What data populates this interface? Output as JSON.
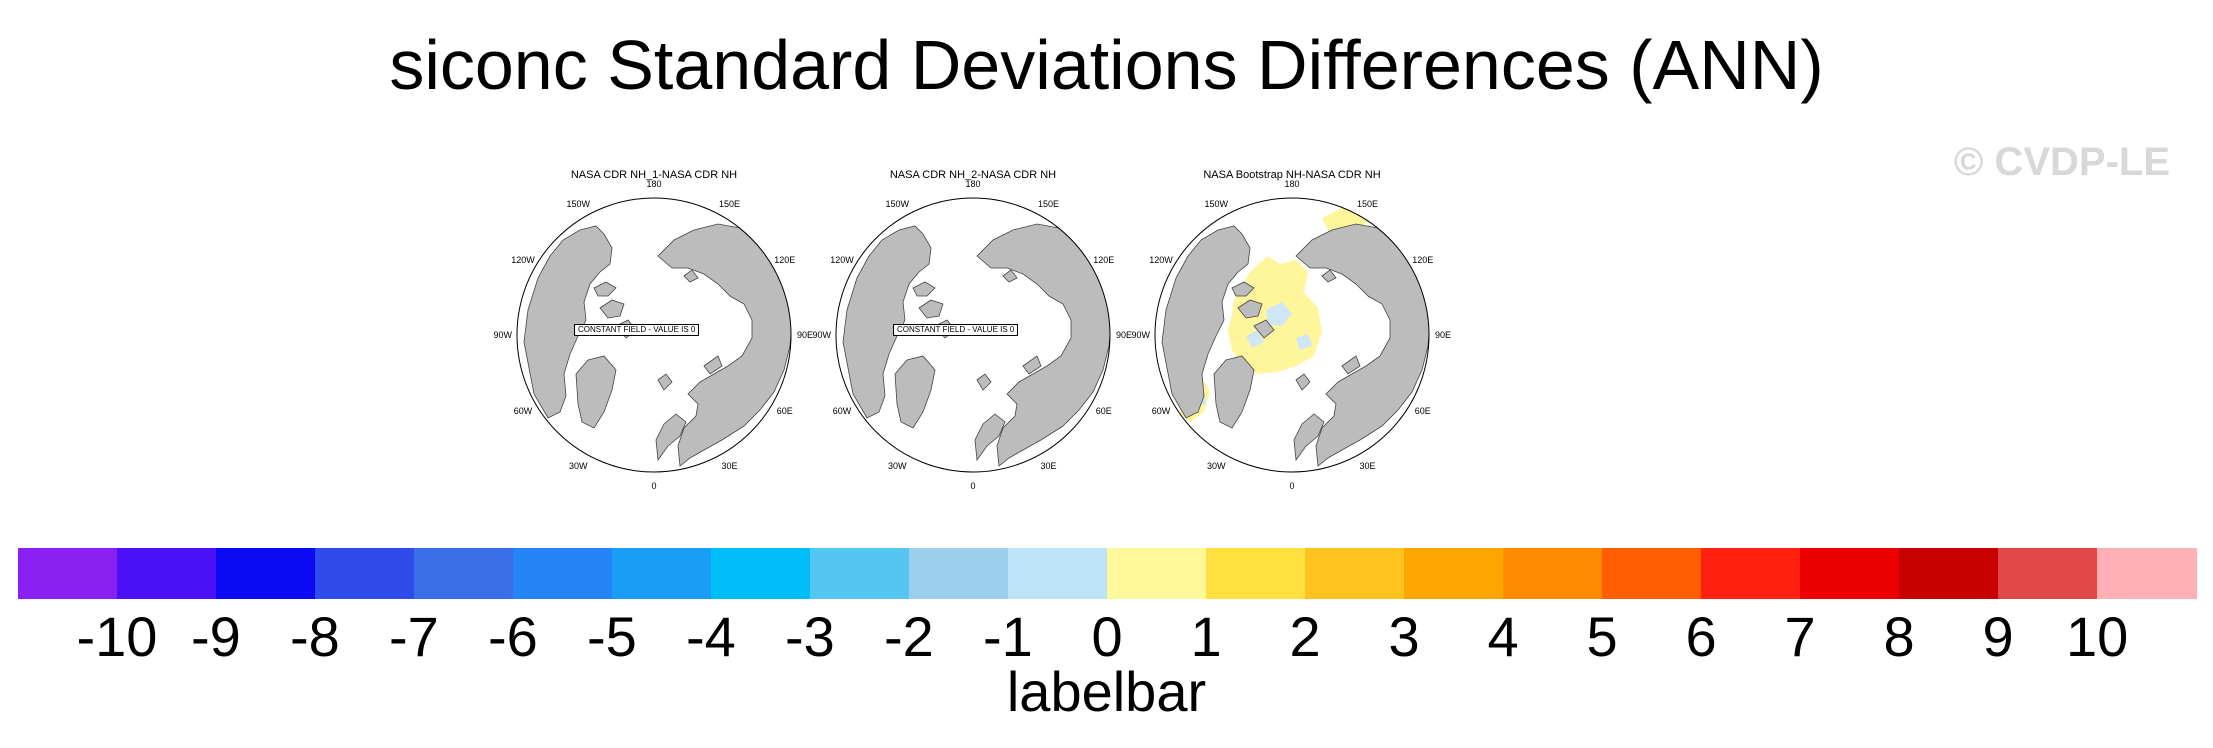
{
  "title": "siconc Standard Deviations Differences (ANN)",
  "watermark": "© CVDP-LE",
  "panels": [
    {
      "title": "NASA CDR NH_1-NASA CDR NH",
      "constant_label": "CONSTANT FIELD - VALUE IS 0",
      "has_data": false
    },
    {
      "title": "NASA CDR NH_2-NASA CDR NH",
      "constant_label": "CONSTANT FIELD - VALUE IS 0",
      "has_data": false
    },
    {
      "title": "NASA Bootstrap NH-NASA CDR NH",
      "constant_label": "",
      "has_data": true
    }
  ],
  "longitude_labels": [
    "180",
    "150E",
    "120E",
    "90E",
    "60E",
    "30E",
    "0",
    "30W",
    "60W",
    "90W",
    "120W",
    "150W"
  ],
  "colorbar": {
    "axis_label": "labelbar",
    "tick_labels": [
      "-10",
      "-9",
      "-8",
      "-7",
      "-6",
      "-5",
      "-4",
      "-3",
      "-2",
      "-1",
      "0",
      "1",
      "2",
      "3",
      "4",
      "5",
      "6",
      "7",
      "8",
      "9",
      "10"
    ],
    "colors": [
      "#8a1ff2",
      "#4a10f5",
      "#0a0af5",
      "#2f4cea",
      "#3a6ee6",
      "#2484f5",
      "#1a9ef5",
      "#00bff8",
      "#55c6f2",
      "#9ccfee",
      "#bde3f7",
      "#fff89a",
      "#ffe03e",
      "#ffc21e",
      "#ffa500",
      "#ff8a00",
      "#ff5e00",
      "#ff2010",
      "#ee0000",
      "#c80000",
      "#e04848",
      "#ffb0b4"
    ]
  },
  "map_colors": {
    "land": "#bcbcbc",
    "ocean": "#ffffff",
    "positive": "#fff59a",
    "negative": "#cfe6f7"
  }
}
